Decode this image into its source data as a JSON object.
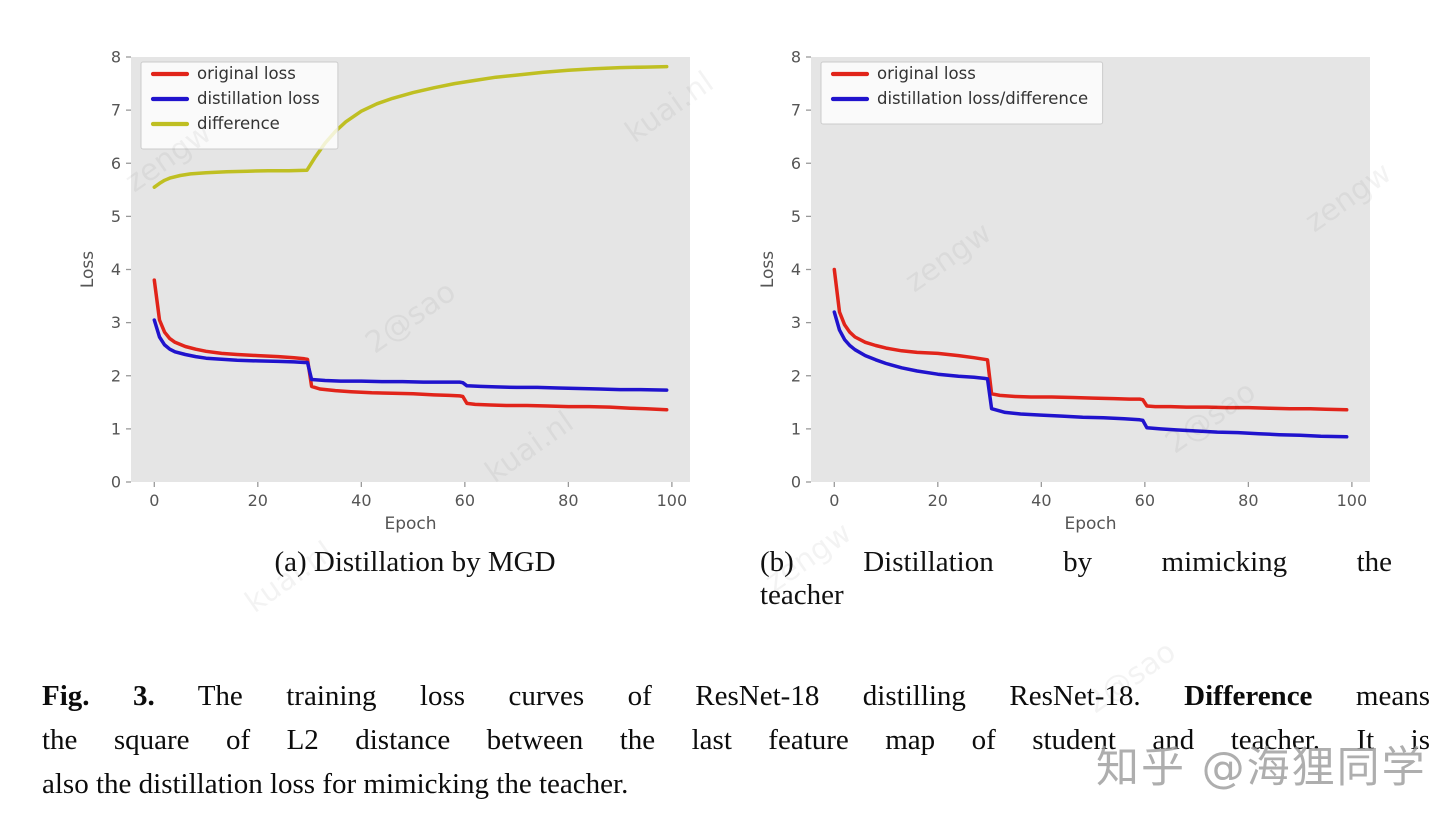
{
  "figure": {
    "subcaption_a": "(a) Distillation by MGD",
    "subcaption_b": "(b) Distillation by mimicking the teacher",
    "subcaption_b_lines": [
      "(b) Distillation by mimicking the",
      "teacher"
    ],
    "caption_lines": [
      {
        "justify": true,
        "segments": [
          {
            "text": "Fig. 3.",
            "bold": true
          },
          {
            "text": " The training loss curves of ResNet-18 distilling ResNet-18. ",
            "bold": false
          },
          {
            "text": "Difference",
            "bold": true
          },
          {
            "text": " means",
            "bold": false
          }
        ]
      },
      {
        "justify": true,
        "segments": [
          {
            "text": "the square of L2 distance between the last feature map of student and teacher. It is",
            "bold": false
          }
        ]
      },
      {
        "justify": false,
        "segments": [
          {
            "text": "also the distillation loss for mimicking the teacher.",
            "bold": false
          }
        ]
      }
    ]
  },
  "watermarks": {
    "zhihu": "知乎 @海狸同学",
    "diagonal_texts": [
      "zengw",
      "2@sao",
      "kuai.nl"
    ]
  },
  "colors": {
    "plot_background": "#e5e5e5",
    "red_line": "#e1241a",
    "blue_line": "#2013cd",
    "yellow_line": "#bfbf22",
    "tick_text": "#555555",
    "legend_text": "#333333",
    "legend_border": "#cccccc"
  },
  "chart_data": [
    {
      "type": "line",
      "title": "(a) Distillation by MGD",
      "xlabel": "Epoch",
      "ylabel": "Loss",
      "xlim": [
        -4.5,
        103.5
      ],
      "ylim": [
        0,
        8
      ],
      "xticks": [
        0,
        20,
        40,
        60,
        80,
        100
      ],
      "yticks": [
        0,
        1,
        2,
        3,
        4,
        5,
        6,
        7,
        8
      ],
      "grid": false,
      "legend_position": "upper left",
      "series": [
        {
          "name": "original loss",
          "color": "#e1241a",
          "x": [
            0,
            1,
            2,
            3,
            4,
            6,
            8,
            10,
            13,
            16,
            20,
            24,
            27,
            29,
            29.6,
            30.4,
            32,
            35,
            38,
            42,
            46,
            50,
            54,
            57,
            59,
            59.6,
            60.4,
            62,
            65,
            68,
            72,
            76,
            80,
            84,
            88,
            92,
            95,
            99
          ],
          "y": [
            3.8,
            3.05,
            2.82,
            2.7,
            2.63,
            2.55,
            2.5,
            2.46,
            2.42,
            2.4,
            2.38,
            2.36,
            2.34,
            2.32,
            2.31,
            1.8,
            1.75,
            1.72,
            1.7,
            1.68,
            1.67,
            1.66,
            1.64,
            1.63,
            1.62,
            1.61,
            1.48,
            1.46,
            1.45,
            1.44,
            1.44,
            1.43,
            1.42,
            1.42,
            1.41,
            1.39,
            1.38,
            1.36
          ]
        },
        {
          "name": "distillation loss",
          "color": "#2013cd",
          "x": [
            0,
            1,
            2,
            3,
            4,
            6,
            8,
            10,
            13,
            16,
            20,
            24,
            27,
            29,
            29.6,
            30.4,
            33,
            36,
            40,
            44,
            48,
            52,
            56,
            59,
            59.6,
            60.4,
            63,
            66,
            70,
            74,
            78,
            82,
            86,
            90,
            94,
            99
          ],
          "y": [
            3.05,
            2.73,
            2.58,
            2.5,
            2.45,
            2.4,
            2.36,
            2.33,
            2.31,
            2.29,
            2.28,
            2.27,
            2.26,
            2.25,
            2.25,
            1.93,
            1.91,
            1.9,
            1.9,
            1.89,
            1.89,
            1.88,
            1.88,
            1.88,
            1.87,
            1.81,
            1.8,
            1.79,
            1.78,
            1.78,
            1.77,
            1.76,
            1.75,
            1.74,
            1.74,
            1.73
          ]
        },
        {
          "name": "difference",
          "color": "#bfbf22",
          "x": [
            0,
            1,
            2,
            3,
            5,
            7,
            10,
            14,
            18,
            22,
            26,
            29.5,
            31,
            33,
            35,
            37,
            40,
            43,
            46,
            50,
            54,
            58,
            62,
            66,
            70,
            75,
            80,
            85,
            90,
            95,
            99
          ],
          "y": [
            5.55,
            5.62,
            5.68,
            5.72,
            5.77,
            5.8,
            5.82,
            5.84,
            5.85,
            5.86,
            5.86,
            5.87,
            6.1,
            6.38,
            6.6,
            6.78,
            6.98,
            7.12,
            7.22,
            7.33,
            7.42,
            7.5,
            7.56,
            7.62,
            7.66,
            7.71,
            7.75,
            7.78,
            7.8,
            7.81,
            7.82
          ]
        }
      ]
    },
    {
      "type": "line",
      "title": "(b) Distillation by mimicking the teacher",
      "xlabel": "Epoch",
      "ylabel": "Loss",
      "xlim": [
        -4.5,
        103.5
      ],
      "ylim": [
        0,
        8
      ],
      "xticks": [
        0,
        20,
        40,
        60,
        80,
        100
      ],
      "yticks": [
        0,
        1,
        2,
        3,
        4,
        5,
        6,
        7,
        8
      ],
      "grid": false,
      "legend_position": "upper left",
      "series": [
        {
          "name": "original loss",
          "color": "#e1241a",
          "x": [
            0,
            1,
            2,
            3,
            4,
            6,
            8,
            10,
            13,
            16,
            20,
            24,
            27,
            29,
            29.6,
            30.4,
            32,
            35,
            38,
            42,
            46,
            50,
            54,
            57,
            59,
            59.6,
            60.4,
            62,
            65,
            68,
            72,
            76,
            80,
            84,
            88,
            92,
            95,
            99
          ],
          "y": [
            4.0,
            3.2,
            2.96,
            2.82,
            2.73,
            2.63,
            2.57,
            2.52,
            2.47,
            2.44,
            2.42,
            2.38,
            2.34,
            2.31,
            2.3,
            1.66,
            1.63,
            1.61,
            1.6,
            1.6,
            1.59,
            1.58,
            1.57,
            1.56,
            1.56,
            1.55,
            1.43,
            1.42,
            1.42,
            1.41,
            1.41,
            1.4,
            1.4,
            1.39,
            1.38,
            1.38,
            1.37,
            1.36
          ]
        },
        {
          "name": "distillation loss/difference",
          "color": "#2013cd",
          "x": [
            0,
            1,
            2,
            3,
            4,
            6,
            8,
            10,
            13,
            16,
            20,
            24,
            27,
            29,
            29.6,
            30.4,
            33,
            36,
            40,
            44,
            48,
            52,
            56,
            59,
            59.6,
            60.4,
            63,
            66,
            70,
            74,
            78,
            82,
            86,
            90,
            94,
            99
          ],
          "y": [
            3.2,
            2.86,
            2.68,
            2.57,
            2.49,
            2.38,
            2.3,
            2.23,
            2.15,
            2.09,
            2.03,
            1.99,
            1.97,
            1.95,
            1.94,
            1.38,
            1.31,
            1.28,
            1.26,
            1.24,
            1.22,
            1.21,
            1.19,
            1.17,
            1.16,
            1.02,
            1.0,
            0.98,
            0.96,
            0.94,
            0.93,
            0.91,
            0.89,
            0.88,
            0.86,
            0.85
          ]
        }
      ]
    }
  ]
}
